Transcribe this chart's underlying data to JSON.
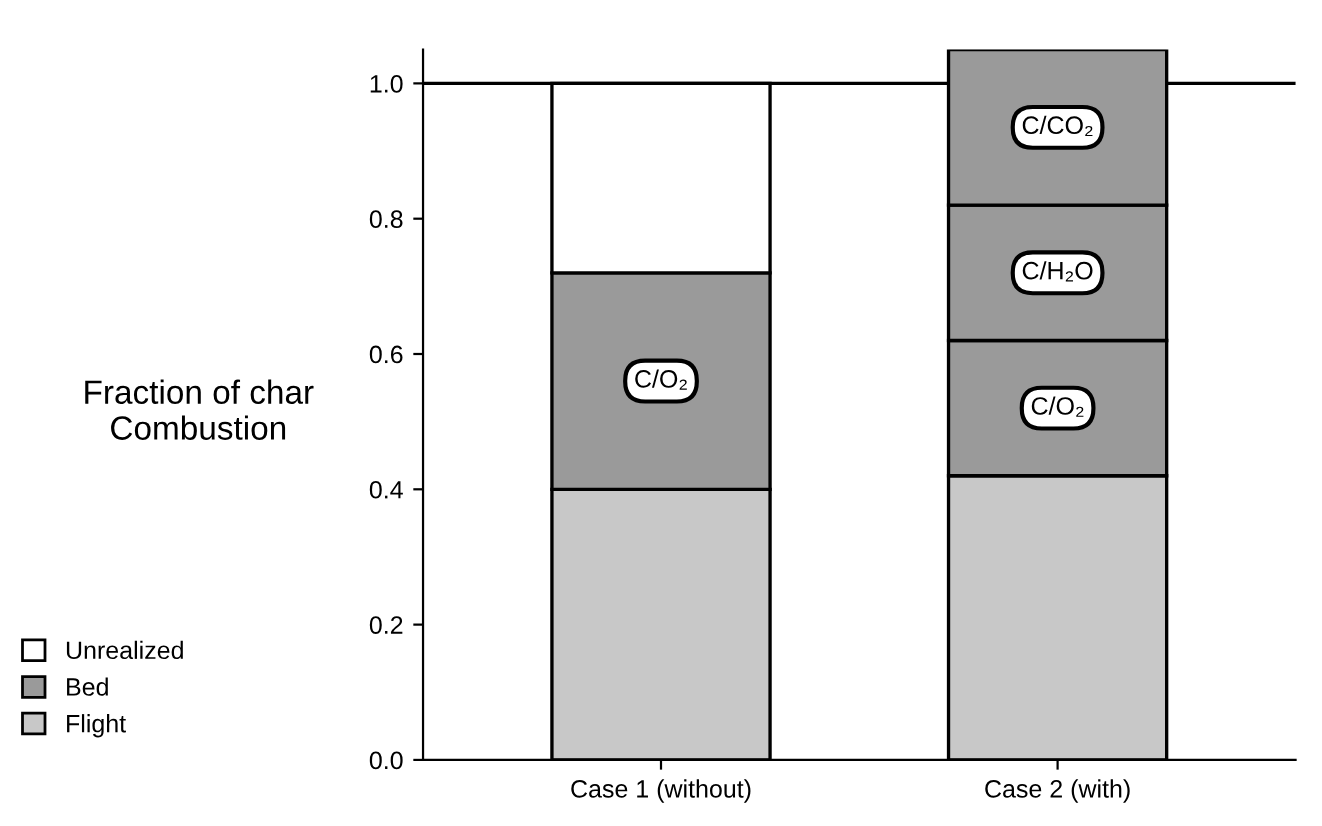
{
  "chart_data": {
    "type": "bar",
    "stacked": true,
    "ylabel": "Fraction of char\nCombustion",
    "categories": [
      "Case 1 (without)",
      "Case 2 (with)"
    ],
    "series": [
      {
        "name": "Flight",
        "color": "#c8c8c8",
        "values": [
          0.4,
          0.42
        ]
      },
      {
        "name": "Bed",
        "color": "#9a9a9a",
        "values": [
          0.32,
          0.2
        ]
      },
      {
        "color": "#9a9a9a",
        "values": [
          null,
          0.2
        ]
      },
      {
        "color": "#9a9a9a",
        "values": [
          null,
          0.23
        ]
      },
      {
        "name": "Unrealized",
        "color": "#ffffff",
        "values": [
          0.28,
          null
        ]
      }
    ],
    "ylim": [
      0,
      1.05
    ],
    "yticks": [
      {
        "value": 0,
        "label": "0.0"
      },
      {
        "value": 0.2,
        "label": "0.2"
      },
      {
        "value": 0.4,
        "label": "0.4"
      },
      {
        "value": 0.6,
        "label": "0.6"
      },
      {
        "value": 0.8,
        "label": "0.8"
      },
      {
        "value": 1.0,
        "label": "1.0"
      }
    ],
    "ref_lines": [
      {
        "axis": "y",
        "value": 1.0,
        "color": "#000000"
      }
    ],
    "annotations": [
      "C/O₂",
      "C/O₂",
      "C/H₂O",
      "C/CO₂"
    ],
    "legend": "bottom left",
    "grid": false
  }
}
